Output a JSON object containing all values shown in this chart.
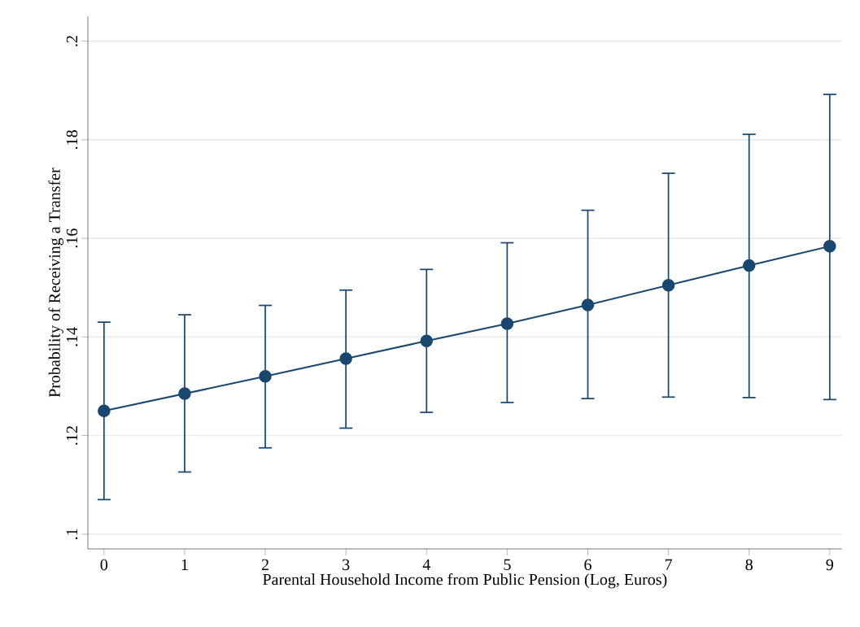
{
  "chart_data": {
    "type": "line",
    "xlabel": "Parental Household Income from Public Pension (Log, Euros)",
    "ylabel": "Probability of Receiving a Transfer",
    "x": [
      0,
      1,
      2,
      3,
      4,
      5,
      6,
      7,
      8,
      9
    ],
    "series": [
      {
        "color": "#1a476f",
        "values": [
          0.125,
          0.1285,
          0.132,
          0.1356,
          0.1392,
          0.1427,
          0.1465,
          0.1505,
          0.1545,
          0.1584
        ],
        "errors": [
          [
            0.107,
            0.143
          ],
          [
            0.1126,
            0.1445
          ],
          [
            0.1175,
            0.1464
          ],
          [
            0.1215,
            0.1495
          ],
          [
            0.1247,
            0.1537
          ],
          [
            0.1267,
            0.1591
          ],
          [
            0.1275,
            0.1657
          ],
          [
            0.1278,
            0.1732
          ],
          [
            0.1277,
            0.1811
          ],
          [
            0.1273,
            0.1892
          ]
        ]
      }
    ],
    "xlim": [
      -0.2,
      9.15
    ],
    "ylim": [
      0.097,
      0.205
    ],
    "xticks": [
      0,
      1,
      2,
      3,
      4,
      5,
      6,
      7,
      8,
      9
    ],
    "yticks": [
      {
        "value": 0.1,
        "label": ".1"
      },
      {
        "value": 0.12,
        "label": ".12"
      },
      {
        "value": 0.14,
        "label": ".14"
      },
      {
        "value": 0.16,
        "label": ".16"
      },
      {
        "value": 0.18,
        "label": ".18"
      },
      {
        "value": 0.2,
        "label": ".2"
      }
    ],
    "grid": "y",
    "marker": "circle",
    "line_style": "solid",
    "legend": false
  }
}
